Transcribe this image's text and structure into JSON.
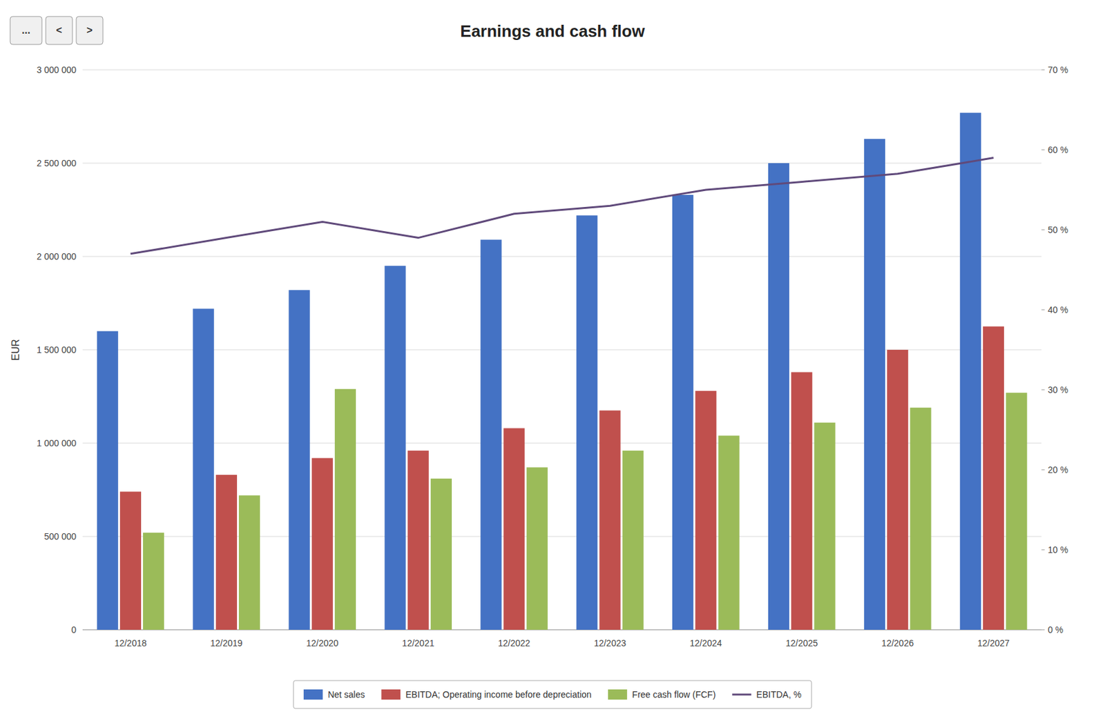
{
  "chart_data": {
    "type": "bar",
    "title": "Earnings and cash flow",
    "ylabel": "EUR",
    "categories": [
      "12/2018",
      "12/2019",
      "12/2020",
      "12/2021",
      "12/2022",
      "12/2023",
      "12/2024",
      "12/2025",
      "12/2026",
      "12/2027"
    ],
    "series": [
      {
        "name": "Net sales",
        "color": "#4472C4",
        "values": [
          1600000,
          1720000,
          1820000,
          1950000,
          2090000,
          2220000,
          2330000,
          2500000,
          2630000,
          2770000
        ]
      },
      {
        "name": "EBITDA; Operating income before depreciation",
        "color": "#C0504D",
        "values": [
          740000,
          830000,
          920000,
          960000,
          1080000,
          1175000,
          1280000,
          1380000,
          1500000,
          1625000
        ]
      },
      {
        "name": "Free cash flow (FCF)",
        "color": "#9BBB59",
        "values": [
          520000,
          720000,
          1290000,
          810000,
          870000,
          960000,
          1040000,
          1110000,
          1190000,
          1270000
        ]
      },
      {
        "name": "EBITDA, %",
        "color": "#604A7B",
        "type": "line",
        "axis": "y2",
        "values": [
          0.47,
          0.49,
          0.51,
          0.49,
          0.52,
          0.53,
          0.55,
          0.56,
          0.57,
          0.59
        ]
      }
    ],
    "ylim": [
      0,
      3000000
    ],
    "yticks": [
      0,
      {
        "value": 500000,
        "label": "500 000"
      },
      {
        "value": 1000000,
        "label": "1 000 000"
      },
      {
        "value": 1500000,
        "label": "1 500 000"
      },
      {
        "value": 2000000,
        "label": "2 000 000"
      },
      {
        "value": 2500000,
        "label": "2 500 000"
      },
      {
        "value": 3000000,
        "label": "3 000 000"
      }
    ],
    "y2lim": [
      0,
      0.7
    ],
    "y2ticks": [
      {
        "value": 0.0,
        "label": "0 %"
      },
      {
        "value": 0.1,
        "label": "10 %"
      },
      {
        "value": 0.2,
        "label": "20 %"
      },
      {
        "value": 0.3,
        "label": "30 %"
      },
      {
        "value": 0.4,
        "label": "40 %"
      },
      {
        "value": 0.5,
        "label": "50 %"
      },
      {
        "value": 0.6,
        "label": "60 %"
      },
      {
        "value": 0.7,
        "label": "70 %"
      }
    ],
    "grid": true,
    "legend": "bottom",
    "annotations": [
      "...",
      "<",
      ">"
    ]
  }
}
